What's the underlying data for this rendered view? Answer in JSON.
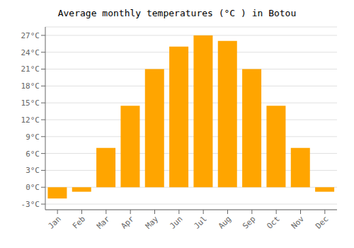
{
  "chart_data": {
    "type": "bar",
    "title": "Average monthly temperatures (°C ) in Botou",
    "categories": [
      "Jan",
      "Feb",
      "Mar",
      "Apr",
      "May",
      "Jun",
      "Jul",
      "Aug",
      "Sep",
      "Oct",
      "Nov",
      "Dec"
    ],
    "values": [
      -2.0,
      -0.8,
      7.0,
      14.5,
      21.0,
      25.0,
      27.0,
      26.0,
      21.0,
      14.5,
      7.0,
      -0.8
    ],
    "color": "#FFA500",
    "ylim": [
      -4,
      28.5
    ],
    "yticks": [
      {
        "value": -3,
        "label": "-3°C"
      },
      {
        "value": 0,
        "label": "0°C"
      },
      {
        "value": 3,
        "label": "3°C"
      },
      {
        "value": 6,
        "label": "6°C"
      },
      {
        "value": 9,
        "label": "9°C"
      },
      {
        "value": 12,
        "label": "12°C"
      },
      {
        "value": 15,
        "label": "15°C"
      },
      {
        "value": 18,
        "label": "18°C"
      },
      {
        "value": 21,
        "label": "21°C"
      },
      {
        "value": 24,
        "label": "24°C"
      },
      {
        "value": 27,
        "label": "27°C"
      }
    ],
    "grid": true
  }
}
